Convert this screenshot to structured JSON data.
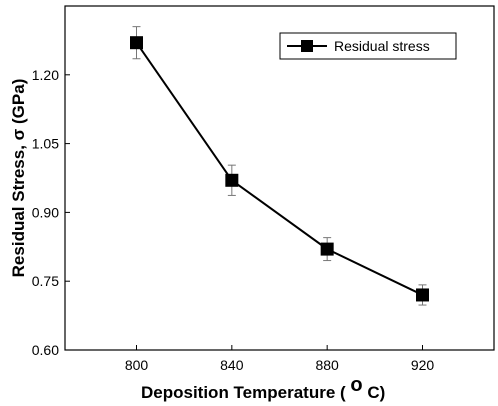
{
  "chart_data": {
    "type": "line",
    "title": "",
    "xlabel_main": "Deposition Temperature (",
    "xlabel_unit_sup": "o",
    "xlabel_unit": "C)",
    "ylabel": "Residual Stress, σ (GPa)",
    "x": [
      800,
      840,
      880,
      920
    ],
    "x_ticks": [
      "800",
      "840",
      "880",
      "920"
    ],
    "xlim": [
      770,
      950
    ],
    "ylim": [
      0.6,
      1.35
    ],
    "y_ticks": [
      "0.60",
      "0.75",
      "0.90",
      "1.05",
      "1.20"
    ],
    "y_tick_values": [
      0.6,
      0.75,
      0.9,
      1.05,
      1.2
    ],
    "series": [
      {
        "name": "Residual stress",
        "values": [
          1.27,
          0.97,
          0.82,
          0.72
        ],
        "errors": [
          0.035,
          0.033,
          0.025,
          0.022
        ],
        "marker": "square",
        "color": "#000000"
      }
    ],
    "legend": {
      "position": "top-right",
      "label": "Residual stress"
    },
    "grid": false
  }
}
